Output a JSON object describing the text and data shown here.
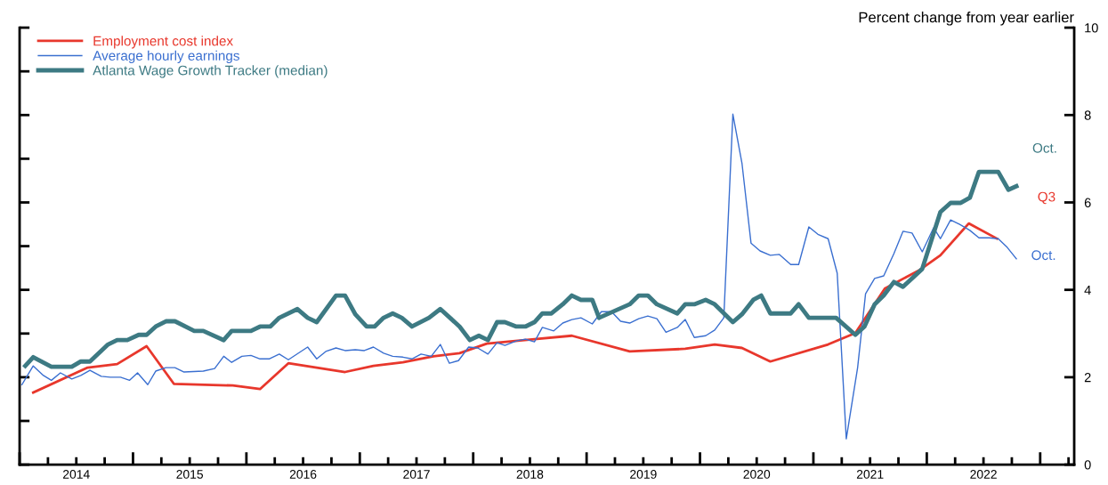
{
  "chart_data": {
    "type": "line",
    "ylabel": "Percent change from year earlier",
    "xlim": [
      2014,
      2023.3
    ],
    "xticks": [
      {
        "value": 2014,
        "label": null
      },
      {
        "value": 2014.25,
        "label": null
      },
      {
        "value": 2014.5,
        "label": "2014"
      },
      {
        "value": 2014.75,
        "label": null
      },
      {
        "value": 2015,
        "label": null
      },
      {
        "value": 2015.25,
        "label": null
      },
      {
        "value": 2015.5,
        "label": "2015"
      },
      {
        "value": 2015.75,
        "label": null
      },
      {
        "value": 2016,
        "label": null
      },
      {
        "value": 2016.25,
        "label": null
      },
      {
        "value": 2016.5,
        "label": "2016"
      },
      {
        "value": 2016.75,
        "label": null
      },
      {
        "value": 2017,
        "label": null
      },
      {
        "value": 2017.25,
        "label": null
      },
      {
        "value": 2017.5,
        "label": "2017"
      },
      {
        "value": 2017.75,
        "label": null
      },
      {
        "value": 2018,
        "label": null
      },
      {
        "value": 2018.25,
        "label": null
      },
      {
        "value": 2018.5,
        "label": "2018"
      },
      {
        "value": 2018.75,
        "label": null
      },
      {
        "value": 2019,
        "label": null
      },
      {
        "value": 2019.25,
        "label": null
      },
      {
        "value": 2019.5,
        "label": "2019"
      },
      {
        "value": 2019.75,
        "label": null
      },
      {
        "value": 2020,
        "label": null
      },
      {
        "value": 2020.25,
        "label": null
      },
      {
        "value": 2020.5,
        "label": "2020"
      },
      {
        "value": 2020.75,
        "label": null
      },
      {
        "value": 2021,
        "label": null
      },
      {
        "value": 2021.25,
        "label": null
      },
      {
        "value": 2021.5,
        "label": "2021"
      },
      {
        "value": 2021.75,
        "label": null
      },
      {
        "value": 2022,
        "label": null
      },
      {
        "value": 2022.25,
        "label": null
      },
      {
        "value": 2022.5,
        "label": "2022"
      },
      {
        "value": 2022.75,
        "label": null
      },
      {
        "value": 2023,
        "label": null
      },
      {
        "value": 2023.25,
        "label": null
      }
    ],
    "ylim": [
      0,
      10
    ],
    "yticks": [
      0,
      {
        "value": 1,
        "label": null
      },
      2,
      {
        "value": 3,
        "label": null
      },
      4,
      {
        "value": 5,
        "label": null
      },
      6,
      {
        "value": 7,
        "label": null
      },
      8,
      {
        "value": 9,
        "label": null
      },
      10
    ],
    "legend": "top left",
    "series": [
      {
        "name": "Employment cost index",
        "color": "#e8372c",
        "x": [
          2014.12,
          2014.6,
          2014.86,
          2015.12,
          2015.36,
          2015.88,
          2016.12,
          2016.37,
          2016.87,
          2017.12,
          2017.38,
          2017.65,
          2017.88,
          2018.12,
          2018.54,
          2018.87,
          2019.38,
          2019.87,
          2020.13,
          2020.37,
          2020.62,
          2021.13,
          2021.37,
          2021.63,
          2021.94,
          2022.12,
          2022.37,
          2022.62
        ],
        "values": [
          1.65,
          2.22,
          2.3,
          2.71,
          1.85,
          1.81,
          1.73,
          2.32,
          2.12,
          2.26,
          2.34,
          2.48,
          2.55,
          2.77,
          2.87,
          2.95,
          2.59,
          2.65,
          2.75,
          2.67,
          2.36,
          2.75,
          3.01,
          4.03,
          4.46,
          4.79,
          5.52,
          5.17
        ]
      },
      {
        "name": "Average hourly earnings",
        "color": "#3a6fd0",
        "x": [
          2014.02,
          2014.12,
          2014.21,
          2014.28,
          2014.36,
          2014.46,
          2014.54,
          2014.62,
          2014.72,
          2014.8,
          2014.89,
          2014.97,
          2015.04,
          2015.13,
          2015.2,
          2015.29,
          2015.37,
          2015.45,
          2015.62,
          2015.72,
          2015.8,
          2015.87,
          2015.96,
          2016.04,
          2016.12,
          2016.2,
          2016.29,
          2016.37,
          2016.54,
          2016.62,
          2016.7,
          2016.79,
          2016.87,
          2016.96,
          2017.04,
          2017.12,
          2017.21,
          2017.29,
          2017.38,
          2017.46,
          2017.54,
          2017.63,
          2017.71,
          2017.79,
          2017.87,
          2017.96,
          2018.04,
          2018.13,
          2018.21,
          2018.28,
          2018.38,
          2018.46,
          2018.54,
          2018.61,
          2018.71,
          2018.79,
          2018.87,
          2018.95,
          2019.05,
          2019.13,
          2019.22,
          2019.3,
          2019.38,
          2019.46,
          2019.54,
          2019.62,
          2019.7,
          2019.8,
          2019.87,
          2019.95,
          2020.05,
          2020.13,
          2020.21,
          2020.29,
          2020.37,
          2020.45,
          2020.53,
          2020.62,
          2020.7,
          2020.8,
          2020.87,
          2020.96,
          2021.04,
          2021.13,
          2021.21,
          2021.29,
          2021.39,
          2021.46,
          2021.54,
          2021.62,
          2021.71,
          2021.79,
          2021.87,
          2021.96,
          2022.06,
          2022.12,
          2022.21,
          2022.29,
          2022.38,
          2022.46,
          2022.55,
          2022.63,
          2022.71,
          2022.79
        ],
        "values": [
          1.83,
          2.26,
          2.04,
          1.93,
          2.1,
          1.96,
          2.04,
          2.16,
          2.02,
          2.0,
          2.0,
          1.93,
          2.1,
          1.83,
          2.14,
          2.22,
          2.22,
          2.12,
          2.14,
          2.2,
          2.48,
          2.34,
          2.48,
          2.5,
          2.42,
          2.42,
          2.53,
          2.4,
          2.69,
          2.42,
          2.59,
          2.67,
          2.61,
          2.63,
          2.61,
          2.69,
          2.55,
          2.48,
          2.46,
          2.42,
          2.53,
          2.48,
          2.75,
          2.32,
          2.38,
          2.69,
          2.67,
          2.53,
          2.79,
          2.73,
          2.83,
          2.87,
          2.81,
          3.14,
          3.06,
          3.24,
          3.32,
          3.36,
          3.22,
          3.5,
          3.5,
          3.28,
          3.24,
          3.34,
          3.4,
          3.34,
          3.03,
          3.14,
          3.32,
          2.91,
          2.95,
          3.08,
          3.36,
          8.02,
          6.9,
          5.07,
          4.89,
          4.79,
          4.81,
          4.58,
          4.58,
          5.44,
          5.27,
          5.17,
          4.38,
          0.59,
          2.22,
          3.91,
          4.26,
          4.32,
          4.83,
          5.34,
          5.3,
          4.87,
          5.42,
          5.17,
          5.6,
          5.5,
          5.36,
          5.19,
          5.19,
          5.17,
          4.97,
          4.71
        ]
      },
      {
        "name": "Atlanta Wage Growth Tracker (median)",
        "color": "#3d7a83",
        "x": [
          2014.05,
          2014.12,
          2014.28,
          2014.46,
          2014.54,
          2014.62,
          2014.78,
          2014.86,
          2014.95,
          2015.05,
          2015.12,
          2015.2,
          2015.29,
          2015.37,
          2015.54,
          2015.62,
          2015.8,
          2015.87,
          2016.04,
          2016.12,
          2016.21,
          2016.29,
          2016.45,
          2016.54,
          2016.62,
          2016.79,
          2016.87,
          2016.96,
          2017.06,
          2017.13,
          2017.21,
          2017.29,
          2017.37,
          2017.46,
          2017.61,
          2017.71,
          2017.88,
          2017.97,
          2018.05,
          2018.13,
          2018.21,
          2018.28,
          2018.38,
          2018.46,
          2018.54,
          2018.61,
          2018.69,
          2018.79,
          2018.87,
          2018.95,
          2019.05,
          2019.11,
          2019.38,
          2019.46,
          2019.54,
          2019.62,
          2019.8,
          2019.87,
          2019.95,
          2020.05,
          2020.13,
          2020.29,
          2020.37,
          2020.47,
          2020.54,
          2020.62,
          2020.8,
          2020.87,
          2020.96,
          2021.2,
          2021.37,
          2021.45,
          2021.54,
          2021.62,
          2021.71,
          2021.79,
          2021.96,
          2022.12,
          2022.21,
          2022.3,
          2022.38,
          2022.46,
          2022.63,
          2022.72,
          2022.79
        ],
        "values": [
          2.26,
          2.46,
          2.24,
          2.24,
          2.36,
          2.36,
          2.75,
          2.85,
          2.85,
          2.97,
          2.97,
          3.16,
          3.28,
          3.28,
          3.06,
          3.06,
          2.85,
          3.06,
          3.06,
          3.16,
          3.16,
          3.36,
          3.56,
          3.36,
          3.26,
          3.87,
          3.87,
          3.44,
          3.16,
          3.16,
          3.36,
          3.46,
          3.36,
          3.16,
          3.36,
          3.56,
          3.16,
          2.85,
          2.95,
          2.85,
          3.26,
          3.26,
          3.16,
          3.16,
          3.26,
          3.46,
          3.46,
          3.67,
          3.87,
          3.77,
          3.77,
          3.36,
          3.67,
          3.87,
          3.87,
          3.67,
          3.46,
          3.67,
          3.67,
          3.77,
          3.67,
          3.26,
          3.44,
          3.77,
          3.87,
          3.46,
          3.46,
          3.67,
          3.36,
          3.36,
          2.97,
          3.16,
          3.67,
          3.87,
          4.18,
          4.07,
          4.48,
          5.78,
          5.99,
          5.99,
          6.11,
          6.7,
          6.7,
          6.29,
          6.37
        ]
      }
    ],
    "annotations": [
      "Q3",
      "Oct.",
      "Oct."
    ]
  }
}
